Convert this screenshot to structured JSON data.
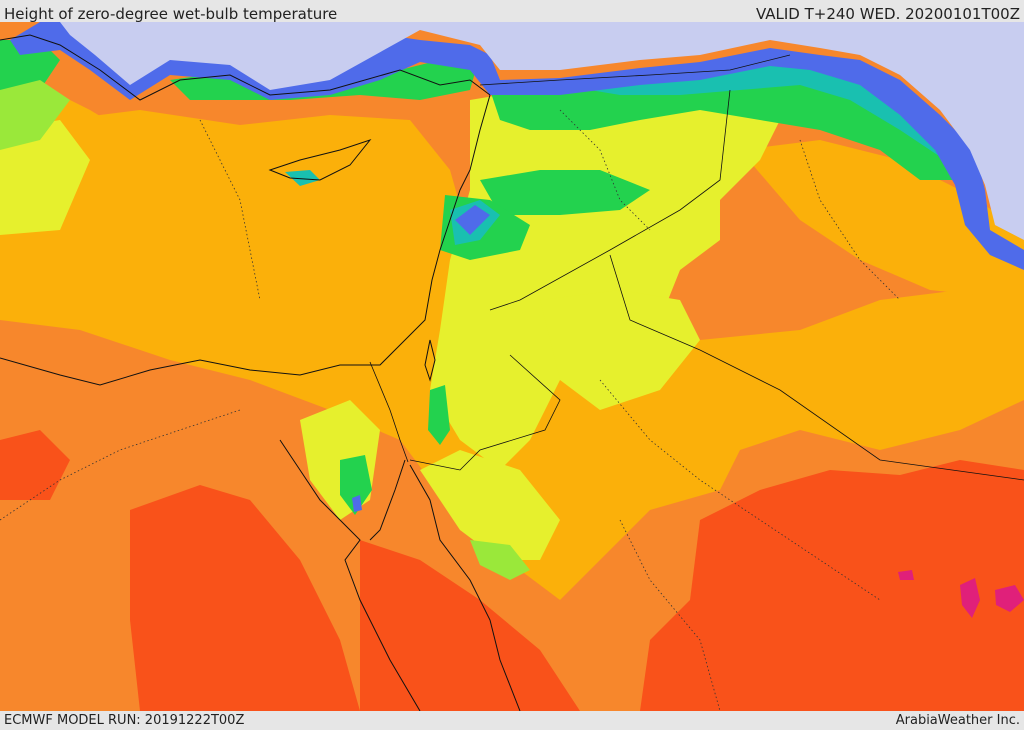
{
  "header": {
    "title": "Height of zero-degree wet-bulb temperature",
    "valid": "VALID T+240 WED. 20200101T00Z"
  },
  "footer": {
    "model_run": "ECMWF MODEL RUN: 20191222T00Z",
    "credit": "ArabiaWeather Inc."
  },
  "colors": {
    "sea_ice": "#c8cdf0",
    "blue": "#4f6bea",
    "cyan": "#19c0b0",
    "green": "#23d24e",
    "yellow_green": "#9ae83a",
    "yellow": "#e6f02d",
    "amber": "#fbb00a",
    "orange": "#f7872c",
    "red_orange": "#f9521a",
    "magenta": "#e0207a"
  }
}
